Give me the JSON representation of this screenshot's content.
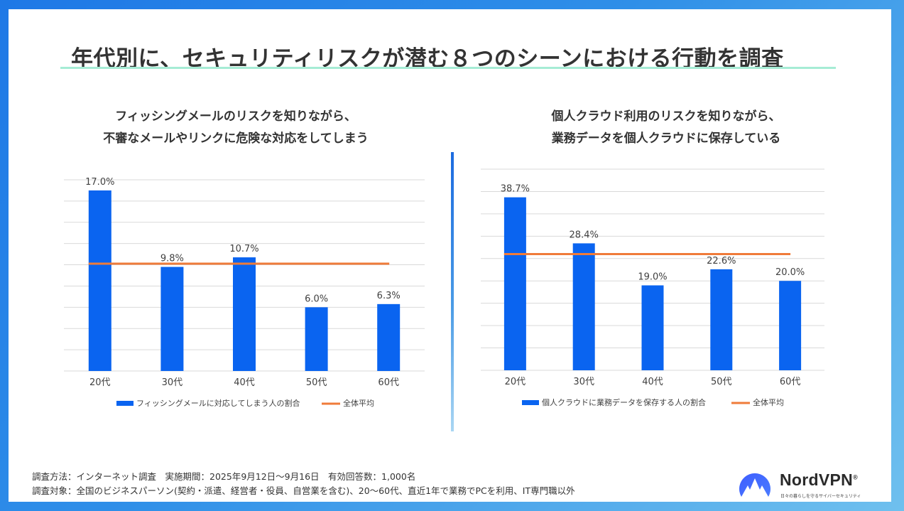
{
  "title": "年代別に、セキュリティリスクが潜む８つのシーンにおける行動を調査",
  "colors": {
    "bar": "#0a64f0",
    "avg": "#ef7b3a",
    "grid": "#d9d9d9",
    "rule": "#a6ecd5"
  },
  "charts": {
    "left": {
      "title_line1": "フィッシングメールのリスクを知りながら、",
      "title_line2": "不審なメールやリンクに危険な対応をしてしまう"
    },
    "right": {
      "title_line1": "個人クラウド利用のリスクを知りながら、",
      "title_line2": "業務データを個人クラウドに保存している"
    }
  },
  "chart_data": [
    {
      "type": "bar",
      "title": "フィッシングメールのリスクを知りながら、不審なメールやリンクに危険な対応をしてしまう",
      "categories": [
        "20代",
        "30代",
        "40代",
        "50代",
        "60代"
      ],
      "series": [
        {
          "name": "フィッシングメールに対応してしまう人の割合",
          "values": [
            17.0,
            9.8,
            10.7,
            6.0,
            6.3
          ],
          "labels": [
            "17.0%",
            "9.8%",
            "10.7%",
            "6.0%",
            "6.3%"
          ]
        },
        {
          "name": "全体平均",
          "type": "line",
          "value": 10.1
        }
      ],
      "ylim": [
        0,
        18
      ],
      "grid": true,
      "legend": "bottom"
    },
    {
      "type": "bar",
      "title": "個人クラウド利用のリスクを知りながら、業務データを個人クラウドに保存している",
      "categories": [
        "20代",
        "30代",
        "40代",
        "50代",
        "60代"
      ],
      "series": [
        {
          "name": "個人クラウドに業務データを保存する人の割合",
          "values": [
            38.7,
            28.4,
            19.0,
            22.6,
            20.0
          ],
          "labels": [
            "38.7%",
            "28.4%",
            "19.0%",
            "22.6%",
            "20.0%"
          ]
        },
        {
          "name": "全体平均",
          "type": "line",
          "value": 26.0
        }
      ],
      "ylim": [
        0,
        45
      ],
      "grid": true,
      "legend": "bottom"
    }
  ],
  "footer": {
    "line1": "調査方法：インターネット調査　実施期間：2025年9月12日～9月16日　有効回答数：1,000名",
    "line2": "調査対象：全国のビジネスパーソン(契約・派遣、経営者・役員、自営業を含む)、20～60代、直近1年で業務でPCを利用、IT専門職以外"
  },
  "logo": {
    "name": "NordVPN",
    "reg": "®",
    "tagline": "日々の暮らしを守るサイバーセキュリティ",
    "icon": "nordvpn-mountain-icon"
  }
}
